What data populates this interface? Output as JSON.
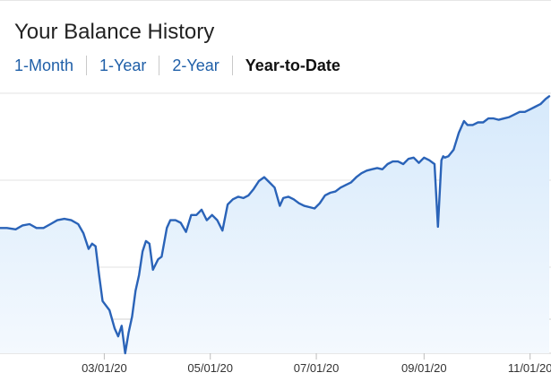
{
  "header": {
    "title": "Your Balance History"
  },
  "tabs": [
    {
      "label": "1-Month",
      "active": false
    },
    {
      "label": "1-Year",
      "active": false
    },
    {
      "label": "2-Year",
      "active": false
    },
    {
      "label": "Year-to-Date",
      "active": true
    }
  ],
  "colors": {
    "line": "#2a63b8",
    "fill_top": "#d6e9fb",
    "fill_bottom": "#f4f9fe",
    "grid": "#e3e3e3",
    "tab_link": "#1f5fa8"
  },
  "chart_data": {
    "type": "area",
    "title": "",
    "xlabel": "",
    "ylabel": "",
    "grid": true,
    "y_ticks_labeled": false,
    "xlim": [
      "2020-01-01",
      "2020-11-12"
    ],
    "ylim": [
      0,
      100
    ],
    "x_ticks": [
      "03/01/20",
      "05/01/20",
      "07/01/20",
      "09/01/20",
      "11/01/20"
    ],
    "y_gridlines": [
      0,
      32,
      66,
      98
    ],
    "series": [
      {
        "x": [
          "2020-01-01",
          "2020-01-05",
          "2020-01-10",
          "2020-01-14",
          "2020-01-18",
          "2020-01-22",
          "2020-01-26",
          "2020-01-30",
          "2020-02-03",
          "2020-02-07",
          "2020-02-11",
          "2020-02-15",
          "2020-02-18",
          "2020-02-21",
          "2020-02-23",
          "2020-02-25",
          "2020-02-27",
          "2020-02-29",
          "2020-03-04",
          "2020-03-07",
          "2020-03-09",
          "2020-03-11",
          "2020-03-13",
          "2020-03-15",
          "2020-03-17",
          "2020-03-19",
          "2020-03-21",
          "2020-03-23",
          "2020-03-25",
          "2020-03-27",
          "2020-03-29",
          "2020-04-01",
          "2020-04-03",
          "2020-04-06",
          "2020-04-08",
          "2020-04-11",
          "2020-04-14",
          "2020-04-17",
          "2020-04-20",
          "2020-04-23",
          "2020-04-26",
          "2020-04-29",
          "2020-05-02",
          "2020-05-05",
          "2020-05-08",
          "2020-05-11",
          "2020-05-14",
          "2020-05-17",
          "2020-05-20",
          "2020-05-23",
          "2020-05-26",
          "2020-05-29",
          "2020-06-01",
          "2020-06-04",
          "2020-06-07",
          "2020-06-10",
          "2020-06-12",
          "2020-06-15",
          "2020-06-18",
          "2020-06-21",
          "2020-06-24",
          "2020-06-27",
          "2020-06-30",
          "2020-07-03",
          "2020-07-06",
          "2020-07-09",
          "2020-07-12",
          "2020-07-15",
          "2020-07-18",
          "2020-07-21",
          "2020-07-24",
          "2020-07-27",
          "2020-07-30",
          "2020-08-02",
          "2020-08-05",
          "2020-08-08",
          "2020-08-11",
          "2020-08-14",
          "2020-08-17",
          "2020-08-20",
          "2020-08-23",
          "2020-08-26",
          "2020-08-29",
          "2020-09-01",
          "2020-09-04",
          "2020-09-07",
          "2020-09-09",
          "2020-09-11",
          "2020-09-12",
          "2020-09-13",
          "2020-09-15",
          "2020-09-18",
          "2020-09-21",
          "2020-09-24",
          "2020-09-26",
          "2020-09-29",
          "2020-10-02",
          "2020-10-05",
          "2020-10-08",
          "2020-10-11",
          "2020-10-14",
          "2020-10-17",
          "2020-10-20",
          "2020-10-23",
          "2020-10-26",
          "2020-10-29",
          "2020-11-01",
          "2020-11-04",
          "2020-11-07",
          "2020-11-10",
          "2020-11-12"
        ],
        "y": [
          48.0,
          48.0,
          47.5,
          49.0,
          49.5,
          48.0,
          48.0,
          49.5,
          51.0,
          51.5,
          51.0,
          49.5,
          46.0,
          40.0,
          42.0,
          41.0,
          30.0,
          20.0,
          16.5,
          9.5,
          6.5,
          10.5,
          0.0,
          8.0,
          14.0,
          24.0,
          30.0,
          39.0,
          43.0,
          42.0,
          32.0,
          36.0,
          37.0,
          48.0,
          51.0,
          51.0,
          50.0,
          46.5,
          53.0,
          53.0,
          55.0,
          51.0,
          53.0,
          51.0,
          47.0,
          57.0,
          59.0,
          60.0,
          59.5,
          60.5,
          63.0,
          66.0,
          67.5,
          65.5,
          63.5,
          56.5,
          59.5,
          60.0,
          59.0,
          57.5,
          56.5,
          56.0,
          55.5,
          57.5,
          60.5,
          61.5,
          62.0,
          63.5,
          64.5,
          65.5,
          67.5,
          69.0,
          70.0,
          70.5,
          71.0,
          70.5,
          72.5,
          73.5,
          73.5,
          72.5,
          74.5,
          75.0,
          73.0,
          75.0,
          74.0,
          72.5,
          48.5,
          74.0,
          75.5,
          75.0,
          75.5,
          78.0,
          84.5,
          89.0,
          87.5,
          87.5,
          88.5,
          88.5,
          90.0,
          90.0,
          89.5,
          90.0,
          90.5,
          91.5,
          92.5,
          92.5,
          93.5,
          94.5,
          95.5,
          97.5,
          98.5
        ]
      }
    ]
  }
}
